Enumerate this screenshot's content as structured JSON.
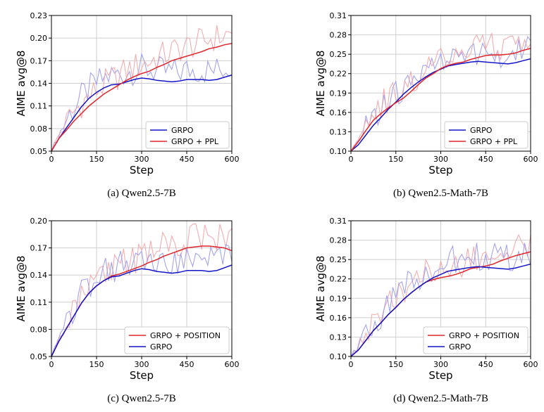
{
  "colors": {
    "blue": "#1515c8",
    "red": "#e0262a",
    "blue_light": "#9a9aec",
    "red_light": "#f2a4a7",
    "grid": "#cfcfcf"
  },
  "chart_data": [
    {
      "type": "line",
      "caption": "(a)  Qwen2.5-7B",
      "xlabel": "Step",
      "ylabel": "AIME avg@8",
      "xlim": [
        0,
        600
      ],
      "ylim": [
        0.05,
        0.23
      ],
      "xticks": [
        0,
        150,
        300,
        450,
        600
      ],
      "yticks": [
        0.05,
        0.08,
        0.11,
        0.14,
        0.17,
        0.2,
        0.23
      ],
      "ytick_labels": [
        "0.05",
        "0.08",
        "0.11",
        "0.14",
        "0.17",
        "0.20",
        "0.23"
      ],
      "grid": true,
      "legend_position": "lower-right",
      "x": [
        0,
        25,
        50,
        75,
        100,
        125,
        150,
        175,
        200,
        225,
        250,
        275,
        300,
        325,
        350,
        375,
        400,
        425,
        450,
        475,
        500,
        525,
        550,
        575,
        600
      ],
      "series": [
        {
          "name": "GRPO",
          "color": "blue",
          "values": [
            0.05,
            0.067,
            0.081,
            0.095,
            0.109,
            0.12,
            0.128,
            0.134,
            0.138,
            0.139,
            0.142,
            0.145,
            0.147,
            0.146,
            0.144,
            0.143,
            0.142,
            0.143,
            0.145,
            0.145,
            0.145,
            0.144,
            0.145,
            0.148,
            0.151
          ]
        },
        {
          "name": "GRPO + PPL",
          "color": "red",
          "values": [
            0.05,
            0.067,
            0.078,
            0.09,
            0.1,
            0.11,
            0.118,
            0.126,
            0.132,
            0.138,
            0.144,
            0.149,
            0.153,
            0.156,
            0.161,
            0.165,
            0.17,
            0.173,
            0.176,
            0.179,
            0.182,
            0.186,
            0.188,
            0.191,
            0.193
          ]
        }
      ]
    },
    {
      "type": "line",
      "caption": "(b)  Qwen2.5-Math-7B",
      "xlabel": "Step",
      "ylabel": "AIME avg@8",
      "xlim": [
        0,
        600
      ],
      "ylim": [
        0.1,
        0.31
      ],
      "xticks": [
        0,
        150,
        300,
        450,
        600
      ],
      "yticks": [
        0.1,
        0.13,
        0.16,
        0.19,
        0.22,
        0.25,
        0.28,
        0.31
      ],
      "ytick_labels": [
        "0.10",
        "0.13",
        "0.16",
        "0.19",
        "0.22",
        "0.25",
        "0.28",
        "0.31"
      ],
      "grid": true,
      "legend_position": "lower-right",
      "x": [
        0,
        25,
        50,
        75,
        100,
        125,
        150,
        175,
        200,
        225,
        250,
        275,
        300,
        325,
        350,
        375,
        400,
        425,
        450,
        475,
        500,
        525,
        550,
        575,
        600
      ],
      "series": [
        {
          "name": "GRPO",
          "color": "blue",
          "values": [
            0.1,
            0.11,
            0.125,
            0.14,
            0.152,
            0.165,
            0.176,
            0.188,
            0.198,
            0.207,
            0.215,
            0.222,
            0.227,
            0.232,
            0.234,
            0.236,
            0.238,
            0.239,
            0.238,
            0.237,
            0.236,
            0.235,
            0.237,
            0.24,
            0.243
          ]
        },
        {
          "name": "GRPO + PPL",
          "color": "red",
          "values": [
            0.1,
            0.115,
            0.132,
            0.148,
            0.158,
            0.167,
            0.175,
            0.182,
            0.192,
            0.203,
            0.213,
            0.22,
            0.228,
            0.233,
            0.236,
            0.238,
            0.242,
            0.245,
            0.248,
            0.249,
            0.249,
            0.25,
            0.252,
            0.256,
            0.259
          ]
        }
      ]
    },
    {
      "type": "line",
      "caption": "(c)  Qwen2.5-7B",
      "xlabel": "Step",
      "ylabel": "AIME avg@8",
      "xlim": [
        0,
        600
      ],
      "ylim": [
        0.05,
        0.2
      ],
      "xticks": [
        0,
        150,
        300,
        450,
        600
      ],
      "yticks": [
        0.05,
        0.08,
        0.11,
        0.14,
        0.17,
        0.2
      ],
      "ytick_labels": [
        "0.05",
        "0.08",
        "0.11",
        "0.14",
        "0.17",
        "0.20"
      ],
      "grid": true,
      "legend_position": "lower-right",
      "x": [
        0,
        25,
        50,
        75,
        100,
        125,
        150,
        175,
        200,
        225,
        250,
        275,
        300,
        325,
        350,
        375,
        400,
        425,
        450,
        475,
        500,
        525,
        550,
        575,
        600
      ],
      "series": [
        {
          "name": "GRPO + POSITION",
          "color": "red",
          "values": [
            0.05,
            0.067,
            0.081,
            0.095,
            0.109,
            0.12,
            0.128,
            0.134,
            0.139,
            0.141,
            0.144,
            0.147,
            0.15,
            0.154,
            0.157,
            0.161,
            0.164,
            0.167,
            0.17,
            0.171,
            0.172,
            0.172,
            0.171,
            0.17,
            0.167
          ]
        },
        {
          "name": "GRPO",
          "color": "blue",
          "values": [
            0.05,
            0.067,
            0.081,
            0.095,
            0.109,
            0.12,
            0.128,
            0.134,
            0.138,
            0.139,
            0.142,
            0.145,
            0.147,
            0.146,
            0.144,
            0.143,
            0.142,
            0.143,
            0.145,
            0.145,
            0.145,
            0.144,
            0.145,
            0.148,
            0.151
          ]
        }
      ]
    },
    {
      "type": "line",
      "caption": "(d)  Qwen2.5-Math-7B",
      "xlabel": "Step",
      "ylabel": "AIME avg@8",
      "xlim": [
        0,
        600
      ],
      "ylim": [
        0.1,
        0.31
      ],
      "xticks": [
        0,
        150,
        300,
        450,
        600
      ],
      "yticks": [
        0.1,
        0.13,
        0.16,
        0.19,
        0.22,
        0.25,
        0.28,
        0.31
      ],
      "ytick_labels": [
        "0.10",
        "0.13",
        "0.16",
        "0.19",
        "0.22",
        "0.25",
        "0.28",
        "0.31"
      ],
      "grid": true,
      "legend_position": "lower-right",
      "x": [
        0,
        25,
        50,
        75,
        100,
        125,
        150,
        175,
        200,
        225,
        250,
        275,
        300,
        325,
        350,
        375,
        400,
        425,
        450,
        475,
        500,
        525,
        550,
        575,
        600
      ],
      "series": [
        {
          "name": "GRPO + POSITION",
          "color": "red",
          "values": [
            0.1,
            0.11,
            0.125,
            0.14,
            0.152,
            0.165,
            0.176,
            0.188,
            0.198,
            0.207,
            0.215,
            0.219,
            0.222,
            0.224,
            0.227,
            0.231,
            0.236,
            0.238,
            0.24,
            0.243,
            0.248,
            0.252,
            0.256,
            0.259,
            0.262
          ]
        },
        {
          "name": "GRPO",
          "color": "blue",
          "values": [
            0.1,
            0.11,
            0.125,
            0.14,
            0.152,
            0.165,
            0.176,
            0.188,
            0.198,
            0.207,
            0.215,
            0.222,
            0.227,
            0.232,
            0.234,
            0.236,
            0.238,
            0.239,
            0.238,
            0.237,
            0.236,
            0.235,
            0.237,
            0.24,
            0.243
          ]
        }
      ]
    }
  ]
}
